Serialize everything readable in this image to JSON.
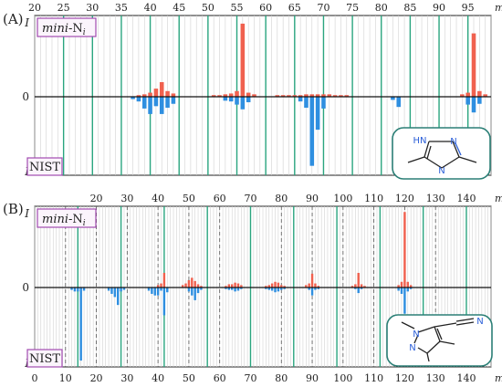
{
  "chart_data": [
    {
      "panel": "(A)",
      "type": "bar",
      "xlabel": "m/z",
      "ylabel": "I",
      "x_ticks": [
        20,
        25,
        30,
        35,
        40,
        45,
        50,
        55,
        60,
        65,
        70,
        75,
        80,
        85,
        90,
        95
      ],
      "xlim": [
        20,
        99
      ],
      "ylim": [
        -1,
        1
      ],
      "zero_label": "0",
      "green_lines": [
        25,
        30,
        35,
        40,
        45,
        50,
        55,
        60,
        65,
        70,
        75,
        80,
        85,
        90,
        95
      ],
      "series": [
        {
          "name": "mini-Ni",
          "direction": "up",
          "color": "#f0614f",
          "x": [
            38,
            39,
            40,
            41,
            42,
            43,
            44,
            51,
            52,
            53,
            54,
            55,
            56,
            57,
            58,
            62,
            63,
            64,
            65,
            66,
            67,
            68,
            69,
            70,
            71,
            72,
            73,
            74,
            94,
            95,
            96,
            97,
            98
          ],
          "y": [
            0.02,
            0.03,
            0.05,
            0.1,
            0.18,
            0.07,
            0.04,
            0.02,
            0.02,
            0.03,
            0.04,
            0.07,
            0.9,
            0.05,
            0.03,
            0.02,
            0.02,
            0.02,
            0.02,
            0.02,
            0.03,
            0.03,
            0.03,
            0.03,
            0.03,
            0.02,
            0.02,
            0.02,
            0.03,
            0.05,
            0.78,
            0.07,
            0.03
          ]
        },
        {
          "name": "NIST",
          "direction": "down",
          "color": "#2f8fe0",
          "x": [
            37,
            38,
            39,
            40,
            41,
            42,
            43,
            44,
            53,
            54,
            55,
            56,
            57,
            66,
            67,
            68,
            69,
            70,
            82,
            83,
            95,
            96,
            97
          ],
          "y": [
            0.03,
            0.06,
            0.15,
            0.22,
            0.12,
            0.22,
            0.14,
            0.09,
            0.05,
            0.06,
            0.1,
            0.16,
            0.07,
            0.06,
            0.14,
            0.88,
            0.42,
            0.15,
            0.04,
            0.13,
            0.1,
            0.2,
            0.09
          ]
        }
      ],
      "legend_top": "mini-N",
      "legend_top_subscript": "i",
      "legend_bottom": "NIST"
    },
    {
      "panel": "(B)",
      "type": "bar",
      "xlabel": "m/z",
      "ylabel": "I",
      "x_ticks": [
        0,
        10,
        20,
        30,
        40,
        50,
        60,
        70,
        80,
        90,
        100,
        110,
        120,
        130,
        140
      ],
      "x_ticks_top": [
        20,
        30,
        40,
        50,
        60,
        70,
        80,
        90,
        100,
        110,
        120,
        130,
        140
      ],
      "xlim": [
        0,
        148
      ],
      "ylim": [
        -1,
        1
      ],
      "zero_label": "0",
      "green_lines": [
        14,
        28,
        42,
        56,
        70,
        84,
        98,
        112,
        126,
        140
      ],
      "dashed_lines": [
        10,
        20,
        30,
        40,
        50,
        60,
        70,
        80,
        90,
        100,
        110,
        120,
        130,
        140
      ],
      "series": [
        {
          "name": "mini-Ni",
          "direction": "up",
          "color": "#f0614f",
          "x": [
            40,
            41,
            42,
            48,
            49,
            50,
            51,
            52,
            53,
            54,
            62,
            63,
            64,
            65,
            66,
            67,
            75,
            76,
            77,
            78,
            79,
            80,
            81,
            88,
            89,
            90,
            91,
            92,
            103,
            104,
            105,
            106,
            107,
            118,
            119,
            120,
            121,
            122
          ],
          "y": [
            0.03,
            0.05,
            0.18,
            0.03,
            0.05,
            0.09,
            0.12,
            0.08,
            0.04,
            0.02,
            0.02,
            0.04,
            0.04,
            0.06,
            0.05,
            0.03,
            0.02,
            0.03,
            0.05,
            0.07,
            0.06,
            0.03,
            0.02,
            0.03,
            0.05,
            0.17,
            0.05,
            0.02,
            0.02,
            0.04,
            0.18,
            0.04,
            0.02,
            0.03,
            0.07,
            0.93,
            0.07,
            0.03
          ]
        },
        {
          "name": "NIST",
          "direction": "down",
          "color": "#2f8fe0",
          "x": [
            12,
            13,
            14,
            15,
            16,
            24,
            25,
            26,
            27,
            28,
            29,
            37,
            38,
            39,
            40,
            41,
            42,
            43,
            50,
            51,
            52,
            53,
            54,
            62,
            63,
            64,
            65,
            66,
            67,
            75,
            76,
            77,
            78,
            79,
            80,
            81,
            89,
            90,
            91,
            92,
            104,
            105,
            106,
            118,
            119,
            120,
            121,
            122
          ],
          "y": [
            0.03,
            0.05,
            0.05,
            0.92,
            0.04,
            0.04,
            0.08,
            0.12,
            0.22,
            0.05,
            0.03,
            0.04,
            0.08,
            0.1,
            0.1,
            0.04,
            0.35,
            0.06,
            0.05,
            0.1,
            0.16,
            0.07,
            0.03,
            0.02,
            0.03,
            0.03,
            0.05,
            0.04,
            0.02,
            0.02,
            0.03,
            0.04,
            0.06,
            0.05,
            0.03,
            0.02,
            0.03,
            0.1,
            0.03,
            0.02,
            0.02,
            0.07,
            0.02,
            0.04,
            0.08,
            0.33,
            0.05,
            0.02
          ]
        }
      ],
      "legend_top": "mini-N",
      "legend_top_subscript": "i",
      "legend_bottom": "NIST"
    }
  ]
}
